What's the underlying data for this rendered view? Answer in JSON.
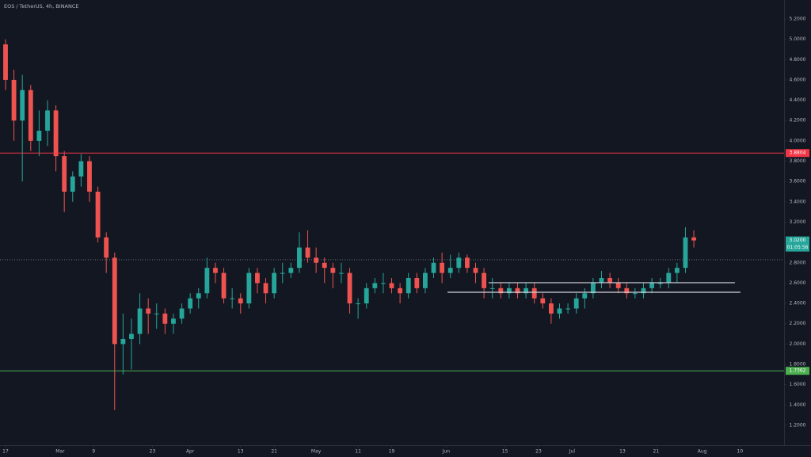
{
  "chart_data": {
    "type": "candlestick",
    "title": "EOS / TetherUS, 4h, BINANCE",
    "up_color": "#26a69a",
    "down_color": "#ef5350",
    "x": [
      0,
      2,
      4,
      6,
      8,
      10,
      12,
      14,
      16,
      18,
      20,
      22,
      24,
      26,
      28,
      30,
      32,
      34,
      36,
      38,
      40,
      42,
      44,
      46,
      48,
      50,
      52,
      54,
      56,
      58,
      60,
      62,
      64,
      66,
      68,
      70,
      72,
      74,
      76,
      78,
      80,
      82,
      84,
      86,
      88,
      90,
      92,
      94,
      96,
      98,
      100,
      102,
      104,
      106,
      108,
      110,
      112,
      114,
      116,
      118,
      120,
      122,
      124,
      126,
      128,
      130,
      132,
      134,
      136,
      138,
      140,
      142,
      144,
      146,
      148,
      150,
      152,
      154,
      156,
      158,
      160,
      162,
      164
    ],
    "open": [
      4.95,
      4.6,
      4.2,
      4.5,
      4.0,
      4.1,
      4.3,
      3.85,
      3.5,
      3.65,
      3.8,
      3.5,
      3.05,
      2.85,
      2.0,
      2.05,
      2.1,
      2.35,
      2.3,
      2.3,
      2.2,
      2.25,
      2.35,
      2.45,
      2.5,
      2.75,
      2.7,
      2.45,
      2.45,
      2.4,
      2.7,
      2.6,
      2.5,
      2.7,
      2.7,
      2.75,
      2.95,
      2.85,
      2.8,
      2.75,
      2.7,
      2.7,
      2.4,
      2.4,
      2.55,
      2.6,
      2.6,
      2.55,
      2.5,
      2.65,
      2.55,
      2.7,
      2.8,
      2.7,
      2.75,
      2.85,
      2.75,
      2.7,
      2.55,
      2.55,
      2.5,
      2.55,
      2.5,
      2.55,
      2.45,
      2.4,
      2.3,
      2.35,
      2.35,
      2.45,
      2.5,
      2.6,
      2.65,
      2.6,
      2.55,
      2.5,
      2.5,
      2.55,
      2.6,
      2.6,
      2.7,
      2.75,
      3.05
    ],
    "high": [
      5.0,
      4.7,
      4.65,
      4.55,
      4.3,
      4.4,
      4.35,
      3.9,
      3.7,
      3.87,
      3.85,
      3.55,
      3.1,
      2.9,
      2.3,
      2.25,
      2.5,
      2.45,
      2.4,
      2.35,
      2.3,
      2.4,
      2.5,
      2.55,
      2.85,
      2.8,
      2.75,
      2.55,
      2.5,
      2.75,
      2.75,
      2.65,
      2.75,
      2.8,
      2.8,
      3.1,
      3.12,
      2.95,
      2.85,
      2.8,
      2.8,
      2.75,
      2.45,
      2.6,
      2.65,
      2.7,
      2.65,
      2.6,
      2.7,
      2.7,
      2.75,
      2.85,
      2.9,
      2.88,
      2.9,
      2.88,
      2.8,
      2.75,
      2.65,
      2.6,
      2.6,
      2.6,
      2.6,
      2.6,
      2.5,
      2.45,
      2.4,
      2.4,
      2.5,
      2.55,
      2.65,
      2.72,
      2.7,
      2.65,
      2.6,
      2.55,
      2.6,
      2.65,
      2.65,
      2.75,
      2.8,
      3.15,
      3.12
    ],
    "low": [
      4.5,
      4.0,
      3.6,
      3.9,
      3.85,
      3.95,
      3.7,
      3.3,
      3.4,
      3.55,
      3.4,
      3.0,
      2.7,
      1.35,
      1.7,
      1.75,
      2.0,
      2.1,
      2.15,
      2.1,
      2.1,
      2.2,
      2.3,
      2.35,
      2.45,
      2.6,
      2.4,
      2.35,
      2.3,
      2.35,
      2.5,
      2.4,
      2.45,
      2.6,
      2.65,
      2.7,
      2.8,
      2.7,
      2.6,
      2.55,
      2.6,
      2.3,
      2.25,
      2.35,
      2.5,
      2.5,
      2.5,
      2.4,
      2.45,
      2.5,
      2.5,
      2.65,
      2.6,
      2.65,
      2.7,
      2.7,
      2.6,
      2.45,
      2.45,
      2.45,
      2.45,
      2.45,
      2.45,
      2.4,
      2.35,
      2.2,
      2.25,
      2.3,
      2.3,
      2.35,
      2.45,
      2.55,
      2.55,
      2.5,
      2.45,
      2.45,
      2.45,
      2.5,
      2.55,
      2.55,
      2.6,
      2.7,
      2.95
    ],
    "close": [
      4.6,
      4.2,
      4.5,
      4.0,
      4.1,
      4.3,
      3.85,
      3.5,
      3.65,
      3.8,
      3.5,
      3.05,
      2.85,
      2.0,
      2.05,
      2.1,
      2.35,
      2.3,
      2.3,
      2.2,
      2.25,
      2.35,
      2.45,
      2.5,
      2.75,
      2.7,
      2.45,
      2.45,
      2.4,
      2.7,
      2.6,
      2.5,
      2.7,
      2.7,
      2.75,
      2.95,
      2.85,
      2.8,
      2.75,
      2.7,
      2.7,
      2.4,
      2.4,
      2.55,
      2.6,
      2.6,
      2.55,
      2.5,
      2.65,
      2.55,
      2.7,
      2.8,
      2.7,
      2.75,
      2.85,
      2.75,
      2.7,
      2.55,
      2.55,
      2.5,
      2.55,
      2.5,
      2.55,
      2.45,
      2.4,
      2.3,
      2.35,
      2.35,
      2.45,
      2.5,
      2.6,
      2.65,
      2.6,
      2.55,
      2.5,
      2.5,
      2.55,
      2.6,
      2.6,
      2.7,
      2.75,
      3.05,
      3.02
    ],
    "xlim": [
      -1.32,
      185.5
    ],
    "ylim": [
      1.005,
      5.387
    ],
    "xticks": [
      {
        "value": 0,
        "label": "17"
      },
      {
        "value": 13,
        "label": "Mar"
      },
      {
        "value": 21,
        "label": "9"
      },
      {
        "value": 35,
        "label": "23"
      },
      {
        "value": 44,
        "label": "Apr"
      },
      {
        "value": 56,
        "label": "13"
      },
      {
        "value": 64,
        "label": "21"
      },
      {
        "value": 74,
        "label": "May"
      },
      {
        "value": 84,
        "label": "11"
      },
      {
        "value": 92,
        "label": "19"
      },
      {
        "value": 105,
        "label": "Jun"
      },
      {
        "value": 119,
        "label": "15"
      },
      {
        "value": 127,
        "label": "23"
      },
      {
        "value": 135,
        "label": "Jul"
      },
      {
        "value": 147,
        "label": "13"
      },
      {
        "value": 155,
        "label": "21"
      },
      {
        "value": 166,
        "label": "Aug"
      },
      {
        "value": 175,
        "label": "10"
      }
    ],
    "yticks": [
      {
        "value": 5.2,
        "label": "5.2000"
      },
      {
        "value": 5.0,
        "label": "5.0000"
      },
      {
        "value": 4.8,
        "label": "4.8000"
      },
      {
        "value": 4.6,
        "label": "4.6000"
      },
      {
        "value": 4.4,
        "label": "4.4000"
      },
      {
        "value": 4.2,
        "label": "4.2000"
      },
      {
        "value": 4.0,
        "label": "4.0000"
      },
      {
        "value": 3.8,
        "label": "3.8000"
      },
      {
        "value": 3.6,
        "label": "3.6000"
      },
      {
        "value": 3.4,
        "label": "3.4000"
      },
      {
        "value": 3.2,
        "label": "3.2000"
      },
      {
        "value": 2.8,
        "label": "2.8000"
      },
      {
        "value": 2.6,
        "label": "2.6000"
      },
      {
        "value": 2.4,
        "label": "2.4000"
      },
      {
        "value": 2.2,
        "label": "2.2000"
      },
      {
        "value": 2.0,
        "label": "2.0000"
      },
      {
        "value": 1.8,
        "label": "1.8000"
      },
      {
        "value": 1.6,
        "label": "1.6000"
      },
      {
        "value": 1.4,
        "label": "1.4000"
      },
      {
        "value": 1.2,
        "label": "1.2000"
      }
    ],
    "grid": false,
    "price_lines": [
      {
        "value": 3.8804,
        "color": "#f23645"
      },
      {
        "value": 1.7362,
        "color": "#4caf50"
      }
    ],
    "trend_lines": [
      {
        "x": [
          115.1,
          173.8
        ],
        "value": 2.604,
        "color": "#d1d4dc"
      },
      {
        "x": [
          105.3,
          175.1
        ],
        "value": 2.51,
        "color": "#d1d4dc"
      }
    ],
    "dotted_line": 2.83,
    "current_price": {
      "value": 3.02,
      "label": "3.0200",
      "countdown": "01:05:56",
      "color": "#26a69a"
    }
  }
}
